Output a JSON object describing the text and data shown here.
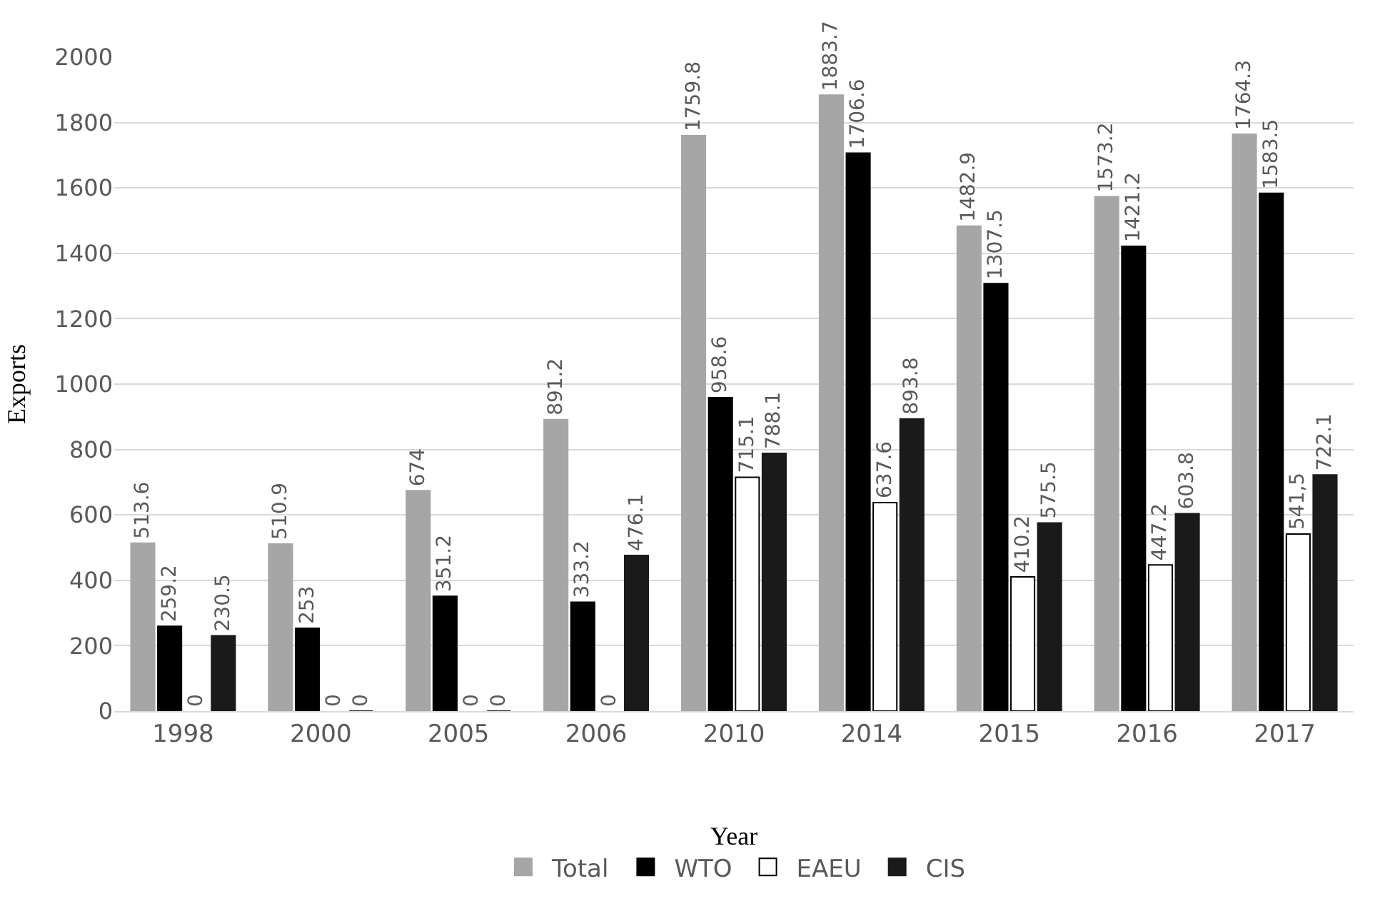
{
  "chart_data": {
    "type": "bar",
    "xlabel": "Year",
    "ylabel": "Exports",
    "categories": [
      "1998",
      "2000",
      "2005",
      "2006",
      "2010",
      "2014",
      "2015",
      "2016",
      "2017"
    ],
    "series": [
      {
        "name": "Total",
        "color": "#a6a6a6",
        "values": [
          513.6,
          510.9,
          674,
          891.2,
          1759.8,
          1883.7,
          1482.9,
          1573.2,
          1764.3
        ],
        "value_labels": [
          "513.6",
          "510.9",
          "674",
          "891.2",
          "1759.8",
          "1883.7",
          "1482.9",
          "1573.2",
          "1764.3"
        ]
      },
      {
        "name": "WTO",
        "color": "#000000",
        "values": [
          259.2,
          253,
          351.2,
          333.2,
          958.6,
          1706.6,
          1307.5,
          1421.2,
          1583.5
        ],
        "value_labels": [
          "259.2",
          "253",
          "351.2",
          "333.2",
          "958.6",
          "1706.6",
          "1307.5",
          "1421.2",
          "1583.5"
        ]
      },
      {
        "name": "EAEU",
        "color": "#ffffff",
        "values": [
          0,
          0,
          0,
          0,
          715.1,
          637.6,
          410.2,
          447.2,
          541.5
        ],
        "value_labels": [
          "0",
          "0",
          "0",
          "0",
          "715.1",
          "637.6",
          "410.2",
          "447.2",
          "541,5"
        ]
      },
      {
        "name": "CIS",
        "color": "#1a1a1a",
        "values": [
          230.5,
          0,
          0,
          476.1,
          788.1,
          893.8,
          575.5,
          603.8,
          722.1
        ],
        "value_labels": [
          "230.5",
          "0",
          "0",
          "476.1",
          "788.1",
          "893.8",
          "575.5",
          "603.8",
          "722.1"
        ]
      }
    ],
    "ylim": [
      0,
      2000
    ],
    "yticks": [
      0,
      200,
      400,
      600,
      800,
      1000,
      1200,
      1400,
      1600,
      1800,
      2000
    ],
    "grid": "y",
    "legend": "bottom"
  }
}
